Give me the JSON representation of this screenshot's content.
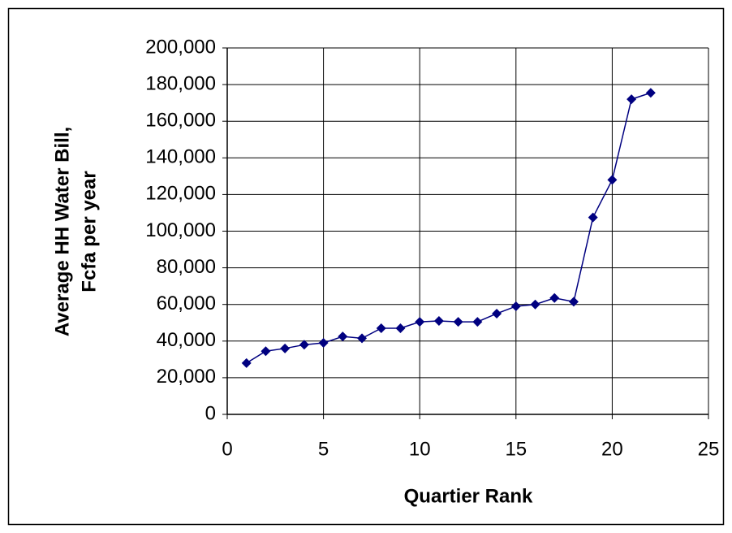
{
  "chart_data": {
    "type": "line",
    "xlabel": "Quartier Rank",
    "ylabel": [
      "Average HH Water Bill,",
      "Fcfa per year"
    ],
    "x": [
      1,
      2,
      3,
      4,
      5,
      6,
      7,
      8,
      9,
      10,
      11,
      12,
      13,
      14,
      15,
      16,
      17,
      18,
      19,
      20,
      21,
      22
    ],
    "series": [
      {
        "color": "#000080",
        "values": [
          28000,
          34500,
          36000,
          38000,
          39000,
          42500,
          41500,
          47000,
          47000,
          50500,
          51000,
          50500,
          50500,
          55000,
          59000,
          60000,
          63500,
          61500,
          107500,
          128000,
          172000,
          175500
        ]
      }
    ],
    "xlim": [
      0,
      25
    ],
    "xticks": [
      0,
      5,
      10,
      15,
      20,
      25
    ],
    "ylim": [
      0,
      200000
    ],
    "yticks": [
      0,
      {
        "value": 20000,
        "label": "20,000"
      },
      {
        "value": 40000,
        "label": "40,000"
      },
      {
        "value": 60000,
        "label": "60,000"
      },
      {
        "value": 80000,
        "label": "80,000"
      },
      {
        "value": 100000,
        "label": "100,000"
      },
      {
        "value": 120000,
        "label": "120,000"
      },
      {
        "value": 140000,
        "label": "140,000"
      },
      {
        "value": 160000,
        "label": "160,000"
      },
      {
        "value": 180000,
        "label": "180,000"
      },
      {
        "value": 200000,
        "label": "200,000"
      }
    ],
    "grid": true
  }
}
